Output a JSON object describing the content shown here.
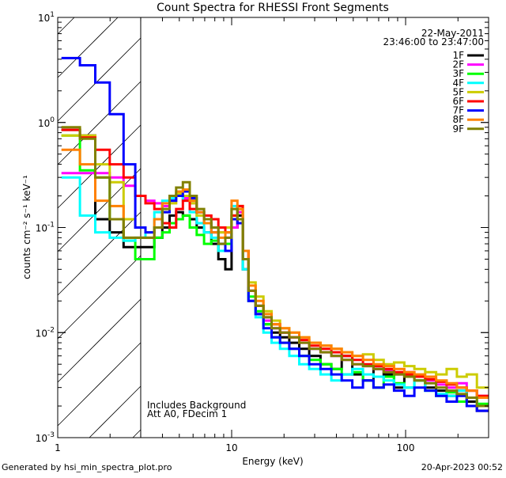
{
  "chart_data": {
    "type": "line",
    "title": "Count Spectra for RHESSI Front Segments",
    "xlabel": "Energy (keV)",
    "ylabel": "counts cm⁻² s⁻¹ keV⁻¹",
    "xscale": "log",
    "yscale": "log",
    "xlim": [
      1,
      300
    ],
    "ylim": [
      0.001,
      10
    ],
    "x_tick_labels": [
      "1",
      "10",
      "100"
    ],
    "x_tick_values": [
      1,
      10,
      100
    ],
    "y_tick_values": [
      10,
      1,
      0.1,
      0.01,
      0.001
    ],
    "y_tick_labels": [
      {
        "base": "10",
        "exp": "1"
      },
      {
        "base": "10",
        "exp": "0"
      },
      {
        "base": "10",
        "exp": "-1"
      },
      {
        "base": "10",
        "exp": "-2"
      },
      {
        "base": "10",
        "exp": "-3"
      }
    ],
    "date": "22-May-2011",
    "time_range": "23:46:00 to 23:47:00",
    "hatched_region_keV": [
      1,
      3
    ],
    "annotations": [
      "Includes Background",
      "Att A0, FDecim 1"
    ],
    "legend_placement": "top-right",
    "energy": [
      1.2,
      1.5,
      1.8,
      2.2,
      2.6,
      3.0,
      3.4,
      3.8,
      4.2,
      4.6,
      5.0,
      5.5,
      6.0,
      6.6,
      7.3,
      8.0,
      8.8,
      9.6,
      10.4,
      11.2,
      12,
      13,
      14.5,
      16,
      18,
      20,
      23,
      26,
      30,
      35,
      40,
      46,
      53,
      61,
      70,
      80,
      92,
      105,
      120,
      140,
      160,
      185,
      210,
      240,
      275
    ],
    "series": [
      {
        "name": "1F",
        "color": "#000000",
        "values": [
          0.85,
          0.75,
          0.12,
          0.09,
          0.065,
          0.065,
          0.065,
          0.08,
          0.1,
          0.13,
          0.14,
          0.13,
          0.12,
          0.1,
          0.09,
          0.07,
          0.05,
          0.04,
          0.1,
          0.13,
          0.04,
          0.02,
          0.015,
          0.012,
          0.01,
          0.009,
          0.008,
          0.007,
          0.006,
          0.005,
          0.0045,
          0.006,
          0.004,
          0.0035,
          0.0045,
          0.004,
          0.003,
          0.0038,
          0.0035,
          0.003,
          0.0028,
          0.0025,
          0.0028,
          0.0022,
          0.0018
        ]
      },
      {
        "name": "2F",
        "color": "#ff00ff",
        "values": [
          0.33,
          0.33,
          0.33,
          0.3,
          0.25,
          0.2,
          0.18,
          0.17,
          0.16,
          0.18,
          0.2,
          0.19,
          0.17,
          0.14,
          0.12,
          0.1,
          0.09,
          0.08,
          0.1,
          0.14,
          0.06,
          0.025,
          0.018,
          0.013,
          0.011,
          0.01,
          0.009,
          0.008,
          0.007,
          0.0065,
          0.006,
          0.0055,
          0.005,
          0.0048,
          0.0045,
          0.0043,
          0.004,
          0.0042,
          0.0038,
          0.0035,
          0.0032,
          0.003,
          0.0033,
          0.0028,
          0.0025
        ]
      },
      {
        "name": "3F",
        "color": "#00ff00",
        "values": [
          0.75,
          0.35,
          0.3,
          0.12,
          0.075,
          0.05,
          0.05,
          0.08,
          0.09,
          0.11,
          0.12,
          0.13,
          0.1,
          0.085,
          0.07,
          0.075,
          0.06,
          0.07,
          0.12,
          0.15,
          0.05,
          0.022,
          0.016,
          0.012,
          0.009,
          0.008,
          0.007,
          0.006,
          0.0055,
          0.005,
          0.0045,
          0.004,
          0.0042,
          0.0035,
          0.003,
          0.0038,
          0.0033,
          0.003,
          0.0035,
          0.0028,
          0.0025,
          0.0027,
          0.0022,
          0.0024,
          0.0021
        ]
      },
      {
        "name": "4F",
        "color": "#00ffff",
        "values": [
          0.3,
          0.13,
          0.09,
          0.08,
          0.075,
          0.08,
          0.09,
          0.14,
          0.18,
          0.19,
          0.2,
          0.18,
          0.14,
          0.11,
          0.09,
          0.08,
          0.06,
          0.09,
          0.16,
          0.12,
          0.04,
          0.02,
          0.014,
          0.01,
          0.008,
          0.007,
          0.006,
          0.005,
          0.0045,
          0.004,
          0.0035,
          0.004,
          0.0045,
          0.004,
          0.0038,
          0.0035,
          0.0032,
          0.003,
          0.0035,
          0.0028,
          0.0026,
          0.0025,
          0.0028,
          0.0024,
          0.002
        ]
      },
      {
        "name": "5F",
        "color": "#cccc00",
        "values": [
          0.75,
          0.75,
          0.4,
          0.27,
          0.12,
          0.1,
          0.09,
          0.1,
          0.14,
          0.17,
          0.21,
          0.2,
          0.17,
          0.13,
          0.11,
          0.1,
          0.09,
          0.1,
          0.13,
          0.16,
          0.06,
          0.03,
          0.022,
          0.016,
          0.013,
          0.011,
          0.01,
          0.009,
          0.008,
          0.0075,
          0.007,
          0.0065,
          0.006,
          0.0062,
          0.0055,
          0.005,
          0.0052,
          0.0048,
          0.0045,
          0.0042,
          0.004,
          0.0045,
          0.0038,
          0.004,
          0.003
        ]
      },
      {
        "name": "6F",
        "color": "#ff0000",
        "values": [
          0.85,
          0.72,
          0.55,
          0.4,
          0.3,
          0.2,
          0.17,
          0.15,
          0.11,
          0.1,
          0.15,
          0.18,
          0.15,
          0.14,
          0.13,
          0.12,
          0.1,
          0.09,
          0.13,
          0.16,
          0.06,
          0.025,
          0.018,
          0.014,
          0.012,
          0.01,
          0.009,
          0.0085,
          0.0075,
          0.007,
          0.0065,
          0.006,
          0.0055,
          0.005,
          0.0048,
          0.0045,
          0.0042,
          0.004,
          0.0038,
          0.0036,
          0.0034,
          0.0032,
          0.003,
          0.0028,
          0.0025
        ]
      },
      {
        "name": "7F",
        "color": "#0000ff",
        "values": [
          4.1,
          3.5,
          2.4,
          1.2,
          0.4,
          0.1,
          0.09,
          0.1,
          0.14,
          0.18,
          0.2,
          0.22,
          0.19,
          0.14,
          0.11,
          0.09,
          0.07,
          0.06,
          0.12,
          0.11,
          0.05,
          0.02,
          0.015,
          0.011,
          0.009,
          0.008,
          0.007,
          0.006,
          0.005,
          0.0045,
          0.004,
          0.0035,
          0.003,
          0.0035,
          0.003,
          0.0032,
          0.0028,
          0.0025,
          0.003,
          0.0028,
          0.0025,
          0.0022,
          0.0025,
          0.002,
          0.0018
        ]
      },
      {
        "name": "8F",
        "color": "#ff8000",
        "values": [
          0.55,
          0.4,
          0.18,
          0.16,
          0.08,
          0.08,
          0.08,
          0.12,
          0.17,
          0.2,
          0.22,
          0.23,
          0.18,
          0.14,
          0.11,
          0.09,
          0.08,
          0.09,
          0.18,
          0.15,
          0.06,
          0.028,
          0.02,
          0.015,
          0.012,
          0.011,
          0.01,
          0.009,
          0.008,
          0.0075,
          0.007,
          0.0065,
          0.006,
          0.0055,
          0.005,
          0.0048,
          0.0045,
          0.0042,
          0.004,
          0.0038,
          0.0035,
          0.0033,
          0.003,
          0.0028,
          0.0024
        ]
      },
      {
        "name": "9F",
        "color": "#808000",
        "values": [
          0.9,
          0.7,
          0.3,
          0.12,
          0.08,
          0.08,
          0.08,
          0.1,
          0.15,
          0.2,
          0.24,
          0.27,
          0.2,
          0.15,
          0.12,
          0.1,
          0.07,
          0.08,
          0.15,
          0.12,
          0.05,
          0.025,
          0.018,
          0.014,
          0.011,
          0.01,
          0.009,
          0.008,
          0.007,
          0.0065,
          0.006,
          0.0055,
          0.005,
          0.0048,
          0.0045,
          0.0042,
          0.004,
          0.0038,
          0.0035,
          0.0033,
          0.003,
          0.0028,
          0.0026,
          0.0024,
          0.002
        ]
      }
    ]
  },
  "footer": {
    "generated_by": "Generated by hsi_min_spectra_plot.pro",
    "timestamp": "20-Apr-2023 00:52"
  }
}
